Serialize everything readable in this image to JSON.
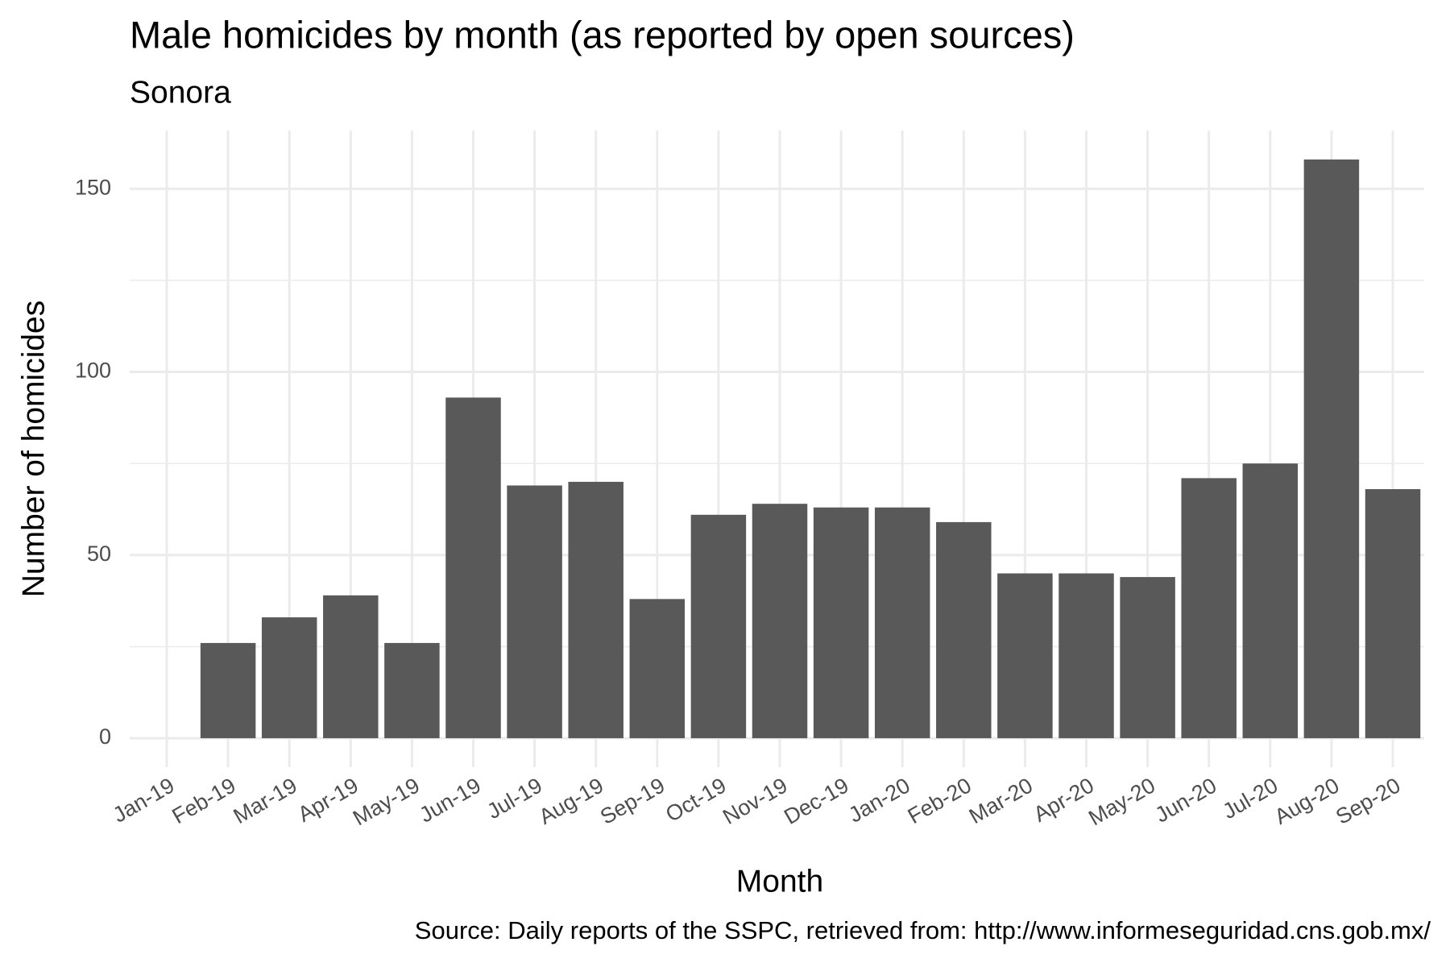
{
  "chart_data": {
    "type": "bar",
    "title": "Male homicides by month (as reported by open sources)",
    "subtitle": "Sonora",
    "x_label": "Month",
    "y_label": "Number of homicides",
    "caption": "Source: Daily reports of the SSPC, retrieved from: http://www.informeseguridad.cns.gob.mx/",
    "categories": [
      "Jan-19",
      "Feb-19",
      "Mar-19",
      "Apr-19",
      "May-19",
      "Jun-19",
      "Jul-19",
      "Aug-19",
      "Sep-19",
      "Oct-19",
      "Nov-19",
      "Dec-19",
      "Jan-20",
      "Feb-20",
      "Mar-20",
      "Apr-20",
      "May-20",
      "Jun-20",
      "Jul-20",
      "Aug-20",
      "Sep-20"
    ],
    "values": [
      null,
      26,
      33,
      39,
      26,
      93,
      69,
      70,
      38,
      61,
      64,
      63,
      63,
      59,
      45,
      45,
      44,
      71,
      75,
      158,
      68
    ],
    "color": "#595959",
    "ylim": [
      -7.9,
      165.9
    ],
    "yticks": [
      0,
      50,
      100,
      150
    ],
    "y_minor_grid": [
      25,
      75,
      125
    ],
    "grid": true
  }
}
